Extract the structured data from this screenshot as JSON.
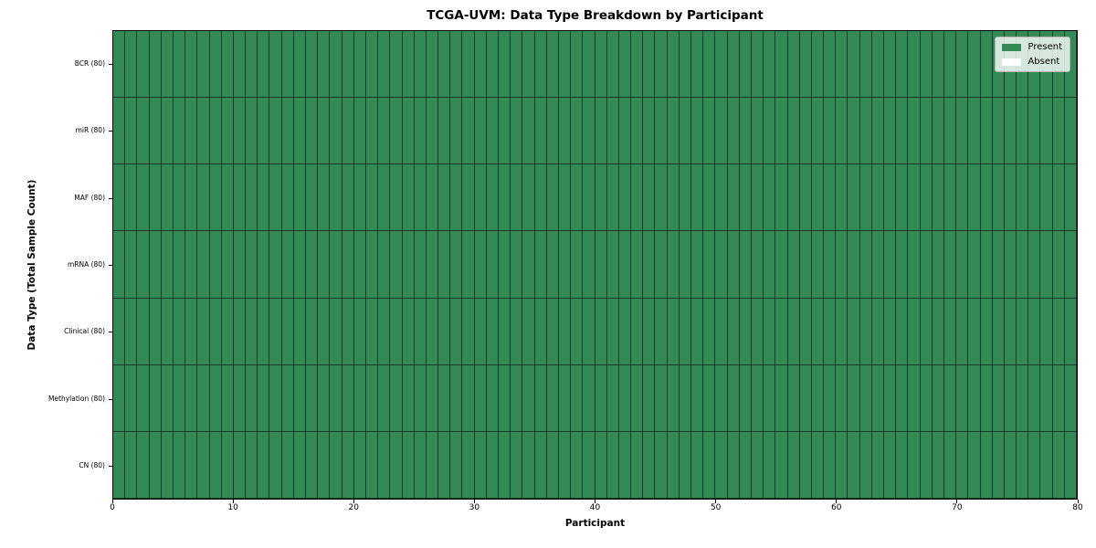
{
  "chart_data": {
    "type": "heatmap",
    "title": "TCGA-UVM: Data Type Breakdown by Participant",
    "xlabel": "Participant",
    "ylabel": "Data Type (Total Sample Count)",
    "participants": 80,
    "xlim": [
      0,
      80
    ],
    "x_ticks": [
      0,
      10,
      20,
      30,
      40,
      50,
      60,
      70,
      80
    ],
    "rows": [
      {
        "label": "BCR (80)",
        "total_samples": 80,
        "present_count": 80
      },
      {
        "label": "miR (80)",
        "total_samples": 80,
        "present_count": 80
      },
      {
        "label": "MAF (80)",
        "total_samples": 80,
        "present_count": 80
      },
      {
        "label": "mRNA (80)",
        "total_samples": 80,
        "present_count": 80
      },
      {
        "label": "Clinical (80)",
        "total_samples": 80,
        "present_count": 80
      },
      {
        "label": "Methylation (80)",
        "total_samples": 80,
        "present_count": 80
      },
      {
        "label": "CN (80)",
        "total_samples": 80,
        "present_count": 80
      }
    ],
    "all_present": true,
    "legend": {
      "position": "upper-right",
      "entries": [
        {
          "label": "Present",
          "color": "#348a57"
        },
        {
          "label": "Absent",
          "color": "#ffffff"
        }
      ]
    },
    "colors": {
      "present": "#348a57",
      "absent": "#ffffff",
      "cell_border": "rgba(0,0,0,0.55)",
      "axis": "#000000"
    },
    "grid": "cell-borders",
    "layout": {
      "legend_position": "upper-right"
    }
  }
}
